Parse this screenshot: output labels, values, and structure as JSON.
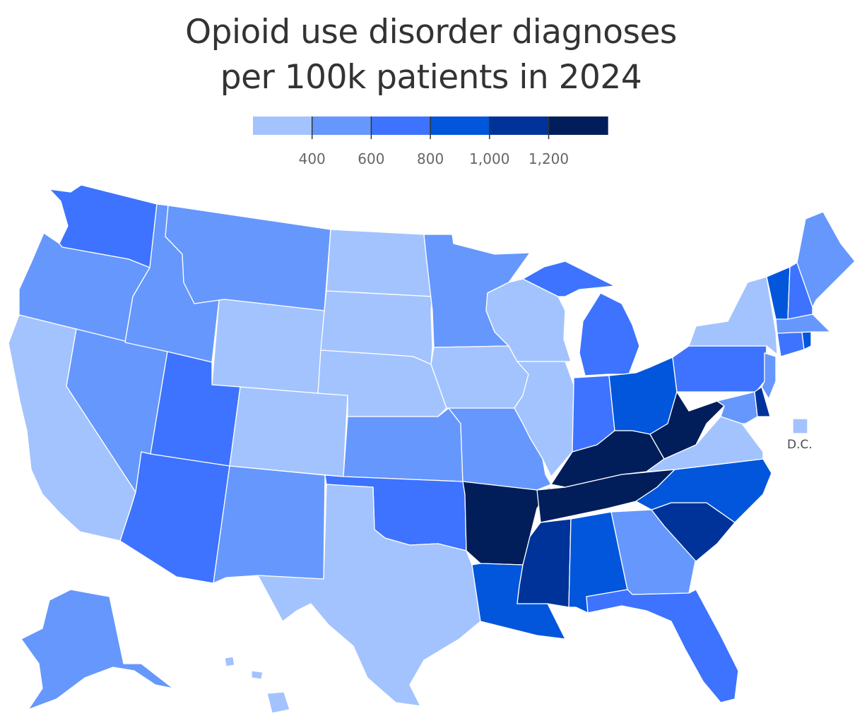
{
  "title": {
    "line1": "Opioid use disorder diagnoses",
    "line2": "per 100k patients in 2024"
  },
  "legend": {
    "bins": [
      {
        "color": "#a3c3fe"
      },
      {
        "color": "#6697fd"
      },
      {
        "color": "#3d73fe"
      },
      {
        "color": "#0156dc"
      },
      {
        "color": "#00339a"
      },
      {
        "color": "#011e5a"
      }
    ],
    "ticks": [
      {
        "label": "400",
        "value": 400
      },
      {
        "label": "600",
        "value": 600
      },
      {
        "label": "800",
        "value": 800
      },
      {
        "label": "1,000",
        "value": 1000
      },
      {
        "label": "1,200",
        "value": 1200
      }
    ]
  },
  "dc_label": "D.C.",
  "states": {
    "WA": {
      "bin": 2
    },
    "OR": {
      "bin": 1
    },
    "CA": {
      "bin": 0
    },
    "NV": {
      "bin": 1
    },
    "ID": {
      "bin": 1
    },
    "MT": {
      "bin": 1
    },
    "WY": {
      "bin": 0
    },
    "UT": {
      "bin": 2
    },
    "AZ": {
      "bin": 2
    },
    "CO": {
      "bin": 0
    },
    "NM": {
      "bin": 1
    },
    "ND": {
      "bin": 0
    },
    "SD": {
      "bin": 0
    },
    "NE": {
      "bin": 0
    },
    "KS": {
      "bin": 1
    },
    "OK": {
      "bin": 2
    },
    "TX": {
      "bin": 0
    },
    "MN": {
      "bin": 1
    },
    "IA": {
      "bin": 0
    },
    "MO": {
      "bin": 1
    },
    "AR": {
      "bin": 5
    },
    "LA": {
      "bin": 3
    },
    "WI": {
      "bin": 0
    },
    "IL": {
      "bin": 0
    },
    "MI": {
      "bin": 2
    },
    "IN": {
      "bin": 2
    },
    "OH": {
      "bin": 3
    },
    "KY": {
      "bin": 5
    },
    "TN": {
      "bin": 5
    },
    "MS": {
      "bin": 4
    },
    "AL": {
      "bin": 3
    },
    "GA": {
      "bin": 1
    },
    "FL": {
      "bin": 2
    },
    "SC": {
      "bin": 4
    },
    "NC": {
      "bin": 3
    },
    "VA": {
      "bin": 0
    },
    "WV": {
      "bin": 5
    },
    "PA": {
      "bin": 2
    },
    "NY": {
      "bin": 0
    },
    "VT": {
      "bin": 3
    },
    "NH": {
      "bin": 2
    },
    "ME": {
      "bin": 1
    },
    "MA": {
      "bin": 1
    },
    "CT": {
      "bin": 2
    },
    "RI": {
      "bin": 3
    },
    "NJ": {
      "bin": 1
    },
    "DE": {
      "bin": 4
    },
    "MD": {
      "bin": 1
    },
    "DC": {
      "bin": 0
    },
    "AK": {
      "bin": 1
    },
    "HI": {
      "bin": 0
    }
  }
}
